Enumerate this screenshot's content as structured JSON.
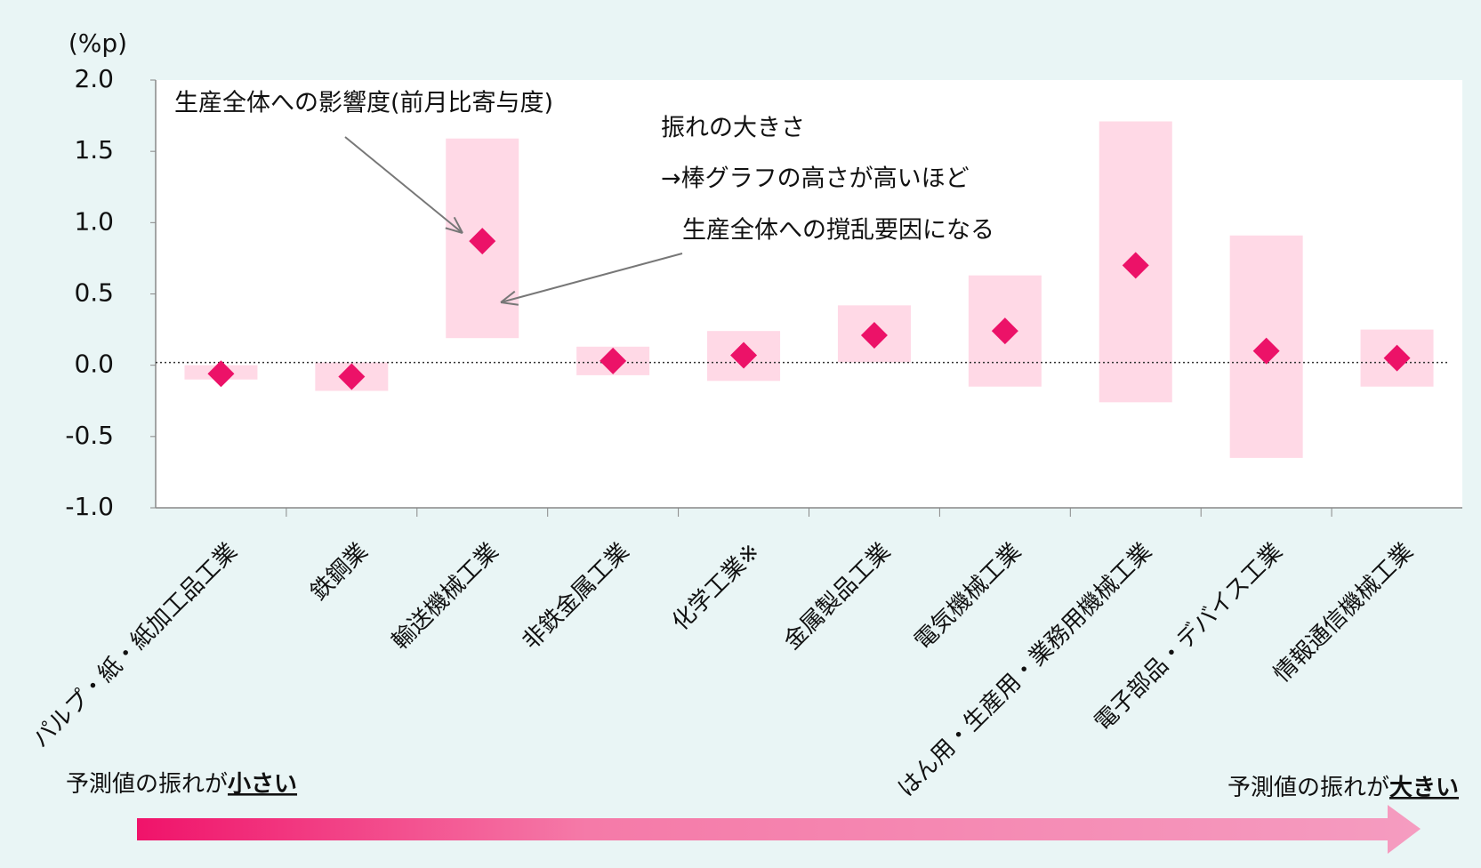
{
  "chart_data": {
    "type": "range_diamond",
    "y_unit": "(%p)",
    "categories": [
      "パルプ・紙・紙加工品工業",
      "鉄鋼業",
      "輸送機械工業",
      "非鉄金属工業",
      "化学工業※",
      "金属製品工業",
      "電気機械工業",
      "はん用・生産用・業務用機械工業",
      "電子部品・デバイス工業",
      "情報通信機械工業"
    ],
    "values": [
      -0.06,
      -0.08,
      0.87,
      0.03,
      0.07,
      0.21,
      0.24,
      0.7,
      0.1,
      0.05
    ],
    "low": [
      -0.1,
      -0.18,
      0.19,
      -0.07,
      -0.11,
      0.02,
      -0.15,
      -0.26,
      -0.65,
      -0.15
    ],
    "high": [
      0.0,
      0.02,
      1.59,
      0.13,
      0.24,
      0.42,
      0.63,
      1.71,
      0.91,
      0.25
    ],
    "bar_color": "#ffd9e6",
    "marker_color": "#ec1268",
    "ylim": [
      -1.0,
      2.0
    ],
    "yticks": [
      {
        "value": -1.0,
        "label": "-1.0"
      },
      -0.5,
      {
        "value": 0.0,
        "label": "0.0"
      },
      0.5,
      {
        "value": 1.0,
        "label": "1.0"
      },
      1.5,
      {
        "value": 2.0,
        "label": "2.0"
      }
    ],
    "annotations": [
      "生産全体への影響度(前月比寄与度)",
      "振れの大きさ",
      "→棒グラフの高さが高いほど",
      "生産全体への撹乱要因になる"
    ],
    "scale_note": {
      "left_prefix": "予測値の振れが",
      "left_emphasis": "小さい",
      "right_prefix": "予測値の振れが",
      "right_emphasis": "大きい"
    }
  }
}
